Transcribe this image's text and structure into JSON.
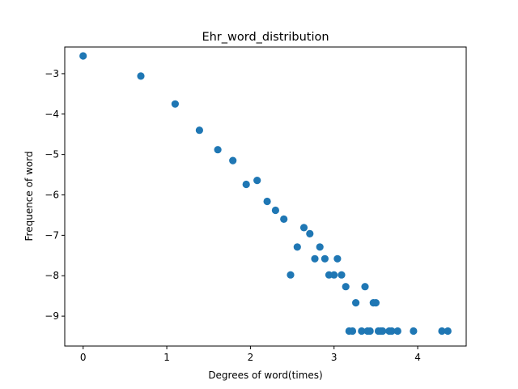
{
  "chart_data": {
    "type": "scatter",
    "title": "Ehr_word_distribution",
    "xlabel": "Degrees of word(times)",
    "ylabel": "Frequence of word",
    "xlim": [
      -0.22,
      4.58
    ],
    "ylim": [
      -9.74,
      -2.34
    ],
    "xticks": [
      0,
      1,
      2,
      3,
      4
    ],
    "xtick_labels": [
      "0",
      "1",
      "2",
      "3",
      "4"
    ],
    "yticks": [
      -3,
      -4,
      -5,
      -6,
      -7,
      -8,
      -9
    ],
    "ytick_labels": [
      "−3",
      "−4",
      "−5",
      "−6",
      "−7",
      "−8",
      "−9"
    ],
    "grid": false,
    "marker_color": "#1f77b4",
    "points": [
      [
        0.0,
        -2.56
      ],
      [
        0.69,
        -3.06
      ],
      [
        1.1,
        -3.75
      ],
      [
        1.39,
        -4.4
      ],
      [
        1.61,
        -4.88
      ],
      [
        1.79,
        -5.15
      ],
      [
        1.95,
        -5.74
      ],
      [
        2.08,
        -5.64
      ],
      [
        2.2,
        -6.16
      ],
      [
        2.3,
        -6.38
      ],
      [
        2.4,
        -6.6
      ],
      [
        2.48,
        -7.98
      ],
      [
        2.56,
        -7.29
      ],
      [
        2.64,
        -6.81
      ],
      [
        2.71,
        -6.96
      ],
      [
        2.77,
        -7.58
      ],
      [
        2.83,
        -7.29
      ],
      [
        2.89,
        -7.58
      ],
      [
        2.94,
        -7.98
      ],
      [
        3.0,
        -7.98
      ],
      [
        3.04,
        -7.58
      ],
      [
        3.09,
        -7.98
      ],
      [
        3.14,
        -8.27
      ],
      [
        3.18,
        -9.37
      ],
      [
        3.22,
        -9.37
      ],
      [
        3.26,
        -8.67
      ],
      [
        3.33,
        -9.37
      ],
      [
        3.37,
        -8.27
      ],
      [
        3.4,
        -9.37
      ],
      [
        3.43,
        -9.37
      ],
      [
        3.47,
        -8.67
      ],
      [
        3.5,
        -8.67
      ],
      [
        3.53,
        -9.37
      ],
      [
        3.56,
        -9.37
      ],
      [
        3.58,
        -9.37
      ],
      [
        3.66,
        -9.37
      ],
      [
        3.69,
        -9.37
      ],
      [
        3.76,
        -9.37
      ],
      [
        3.95,
        -9.37
      ],
      [
        4.29,
        -9.37
      ],
      [
        4.36,
        -9.37
      ]
    ]
  }
}
